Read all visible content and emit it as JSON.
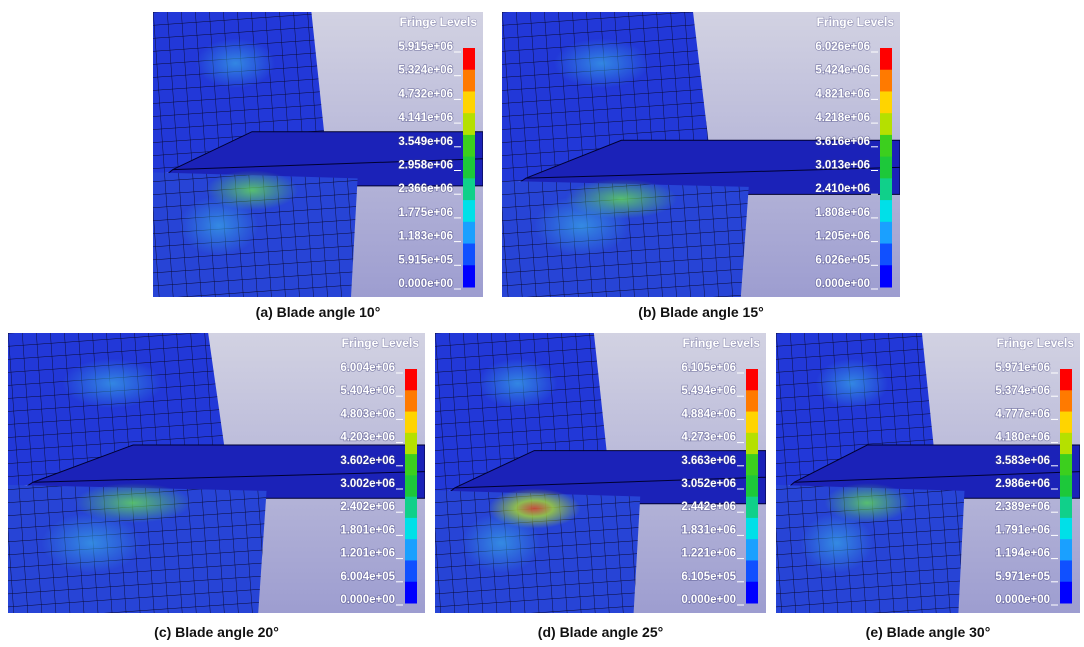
{
  "panels": [
    {
      "legend_title": "Fringe Levels",
      "levels": [
        "5.915e+06",
        "5.324e+06",
        "4.732e+06",
        "4.141e+06",
        "3.549e+06",
        "2.958e+06",
        "2.366e+06",
        "1.775e+06",
        "1.183e+06",
        "5.915e+05",
        "0.000e+00"
      ],
      "caption": "(a) Blade angle 10°"
    },
    {
      "legend_title": "Fringe Levels",
      "levels": [
        "6.026e+06",
        "5.424e+06",
        "4.821e+06",
        "4.218e+06",
        "3.616e+06",
        "3.013e+06",
        "2.410e+06",
        "1.808e+06",
        "1.205e+06",
        "6.026e+05",
        "0.000e+00"
      ],
      "caption": "(b) Blade angle 15°"
    },
    {
      "legend_title": "Fringe Levels",
      "levels": [
        "6.004e+06",
        "5.404e+06",
        "4.803e+06",
        "4.203e+06",
        "3.602e+06",
        "3.002e+06",
        "2.402e+06",
        "1.801e+06",
        "1.201e+06",
        "6.004e+05",
        "0.000e+00"
      ],
      "caption": "(c) Blade angle 20°"
    },
    {
      "legend_title": "Fringe Levels",
      "levels": [
        "6.105e+06",
        "5.494e+06",
        "4.884e+06",
        "4.273e+06",
        "3.663e+06",
        "3.052e+06",
        "2.442e+06",
        "1.831e+06",
        "1.221e+06",
        "6.105e+05",
        "0.000e+00"
      ],
      "caption": "(d) Blade angle 25°"
    },
    {
      "legend_title": "Fringe Levels",
      "levels": [
        "5.971e+06",
        "5.374e+06",
        "4.777e+06",
        "4.180e+06",
        "3.583e+06",
        "2.986e+06",
        "2.389e+06",
        "1.791e+06",
        "1.194e+06",
        "5.971e+05",
        "0.000e+00"
      ],
      "caption": "(e) Blade angle 30°"
    }
  ]
}
